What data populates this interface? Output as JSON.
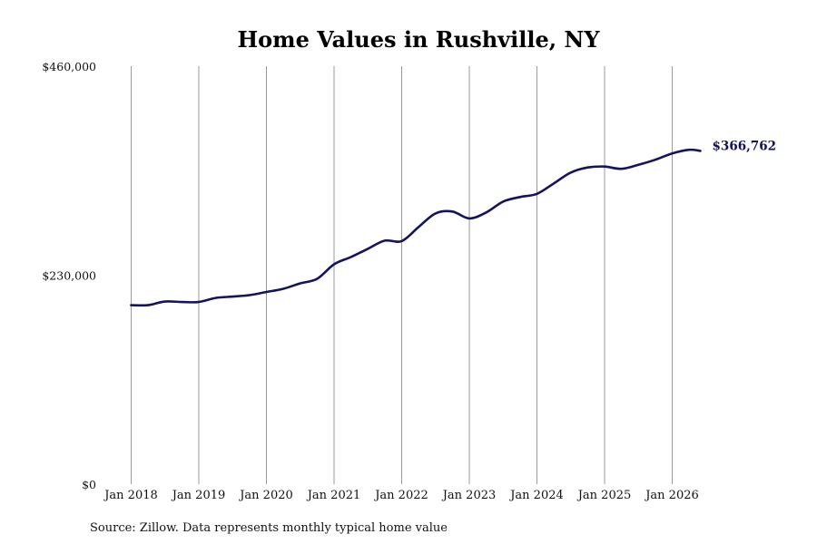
{
  "chart_data": {
    "type": "line",
    "title": "Home Values in Rushville, NY",
    "source_note": "Source: Zillow. Data represents monthly typical home value",
    "xlabel": "",
    "ylabel": "",
    "x_ticks": [
      "Jan 2018",
      "Jan 2019",
      "Jan 2020",
      "Jan 2021",
      "Jan 2022",
      "Jan 2023",
      "Jan 2024",
      "Jan 2025",
      "Jan 2026"
    ],
    "y_ticks": [
      "$0",
      "$230,000",
      "$460,000"
    ],
    "ylim": [
      0,
      460000
    ],
    "xlim": [
      "2018-01",
      "2026-06"
    ],
    "grid": "vertical lines at each January",
    "end_label": "$366,762",
    "colors": {
      "series": "#14145e",
      "end_label": "#0f1257",
      "grid": "#9a9a9a"
    },
    "series": [
      {
        "points": [
          [
            "2018-01",
            197000
          ],
          [
            "2018-04",
            197000
          ],
          [
            "2018-07",
            201000
          ],
          [
            "2018-10",
            200500
          ],
          [
            "2019-01",
            200500
          ],
          [
            "2019-04",
            205000
          ],
          [
            "2019-07",
            206500
          ],
          [
            "2019-10",
            208000
          ],
          [
            "2020-01",
            211500
          ],
          [
            "2020-04",
            215000
          ],
          [
            "2020-07",
            221000
          ],
          [
            "2020-10",
            226000
          ],
          [
            "2021-01",
            242000
          ],
          [
            "2021-04",
            250000
          ],
          [
            "2021-07",
            259000
          ],
          [
            "2021-10",
            268000
          ],
          [
            "2022-01",
            267500
          ],
          [
            "2022-04",
            283000
          ],
          [
            "2022-07",
            298000
          ],
          [
            "2022-10",
            300000
          ],
          [
            "2023-01",
            292500
          ],
          [
            "2023-04",
            299000
          ],
          [
            "2023-07",
            311000
          ],
          [
            "2023-10",
            316000
          ],
          [
            "2024-01",
            319500
          ],
          [
            "2024-04",
            331000
          ],
          [
            "2024-07",
            343000
          ],
          [
            "2024-10",
            348500
          ],
          [
            "2025-01",
            349500
          ],
          [
            "2025-04",
            347000
          ],
          [
            "2025-07",
            351500
          ],
          [
            "2025-10",
            357000
          ],
          [
            "2026-01",
            364000
          ],
          [
            "2026-04",
            368000
          ],
          [
            "2026-06",
            366762
          ]
        ]
      }
    ]
  }
}
